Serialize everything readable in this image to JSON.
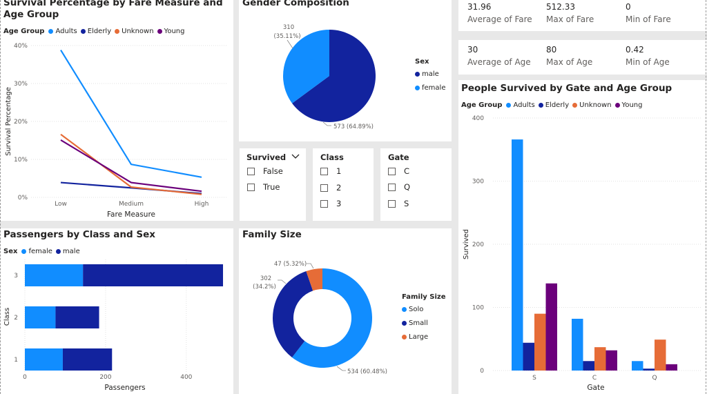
{
  "kpis": {
    "fare": [
      {
        "value": "31.96",
        "label": "Average of Fare"
      },
      {
        "value": "512.33",
        "label": "Max of Fare"
      },
      {
        "value": "0",
        "label": "Min of Fare"
      }
    ],
    "age": [
      {
        "value": "30",
        "label": "Average of Age"
      },
      {
        "value": "80",
        "label": "Max of Age"
      },
      {
        "value": "0.42",
        "label": "Min of Age"
      }
    ]
  },
  "slicers": {
    "survived": {
      "title": "Survived",
      "options": [
        "False",
        "True"
      ]
    },
    "class": {
      "title": "Class",
      "options": [
        "1",
        "2",
        "3"
      ]
    },
    "gate": {
      "title": "Gate",
      "options": [
        "C",
        "Q",
        "S"
      ]
    }
  },
  "colors": {
    "adults": "#118dff",
    "elderly": "#12239e",
    "unknown": "#e66c37",
    "young": "#6b007b",
    "female": "#118dff",
    "male": "#12239e",
    "solo": "#118dff",
    "small": "#12239e",
    "large": "#e66c37"
  },
  "chart_data": [
    {
      "type": "line",
      "title": "Survival Percentage by Fare Measure and Age Group",
      "xlabel": "Fare Measure",
      "ylabel": "Survival Percentage",
      "legend_title": "Age Group",
      "categories": [
        "Low",
        "Medium",
        "High"
      ],
      "y_ticks": [
        "0%",
        "10%",
        "20%",
        "30%",
        "40%"
      ],
      "ylim": [
        0,
        40
      ],
      "series": [
        {
          "name": "Adults",
          "values": [
            38.8,
            8.7,
            5.3
          ]
        },
        {
          "name": "Elderly",
          "values": [
            3.9,
            2.5,
            1.0
          ]
        },
        {
          "name": "Unknown",
          "values": [
            16.6,
            2.7,
            0.8
          ]
        },
        {
          "name": "Young",
          "values": [
            15.1,
            3.9,
            1.6
          ]
        }
      ]
    },
    {
      "type": "pie",
      "title": "Gender Composition",
      "legend_title": "Sex",
      "slices": [
        {
          "name": "male",
          "value": 573,
          "label": "573 (64.89%)"
        },
        {
          "name": "female",
          "value": 310,
          "label": "310 (35.11%)"
        }
      ]
    },
    {
      "type": "bar",
      "orientation": "horizontal",
      "stacked": true,
      "title": "Passengers by Class and Sex",
      "xlabel": "Passengers",
      "ylabel": "Class",
      "legend_title": "Sex",
      "categories": [
        "3",
        "2",
        "1"
      ],
      "x_ticks": [
        "0",
        "200",
        "400"
      ],
      "xlim": [
        0,
        500
      ],
      "series": [
        {
          "name": "female",
          "values": [
            144,
            76,
            94
          ]
        },
        {
          "name": "male",
          "values": [
            347,
            108,
            122
          ]
        }
      ]
    },
    {
      "type": "pie",
      "donut": true,
      "title": "Family Size",
      "legend_title": "Family Size",
      "slices": [
        {
          "name": "Solo",
          "value": 534,
          "label": "534 (60.48%)"
        },
        {
          "name": "Small",
          "value": 302,
          "label": "302\n(34.2%)"
        },
        {
          "name": "Large",
          "value": 47,
          "label": "47 (5.32%)"
        }
      ]
    },
    {
      "type": "bar",
      "title": "People Survived by Gate and Age Group",
      "xlabel": "Gate",
      "ylabel": "Survived",
      "legend_title": "Age Group",
      "categories": [
        "S",
        "C",
        "Q"
      ],
      "y_ticks": [
        "0",
        "100",
        "200",
        "300",
        "400"
      ],
      "ylim": [
        0,
        400
      ],
      "series": [
        {
          "name": "Adults",
          "values": [
            366,
            82,
            15
          ]
        },
        {
          "name": "Elderly",
          "values": [
            44,
            15,
            3
          ]
        },
        {
          "name": "Unknown",
          "values": [
            90,
            37,
            49
          ]
        },
        {
          "name": "Young",
          "values": [
            138,
            32,
            10
          ]
        }
      ]
    }
  ]
}
